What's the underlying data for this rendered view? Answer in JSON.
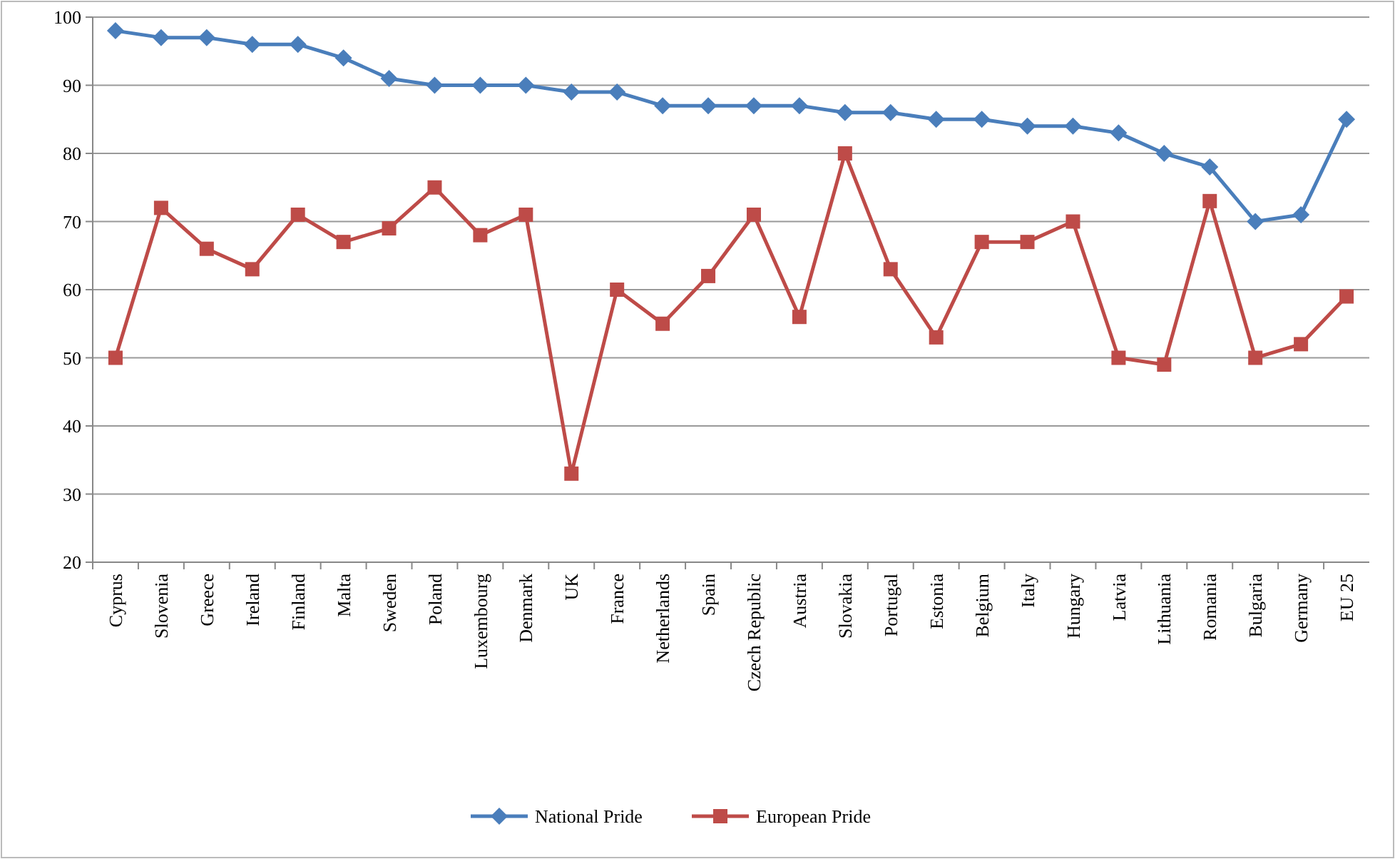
{
  "chart_data": {
    "type": "line",
    "categories": [
      "Cyprus",
      "Slovenia",
      "Greece",
      "Ireland",
      "Finland",
      "Malta",
      "Sweden",
      "Poland",
      "Luxembourg",
      "Denmark",
      "UK",
      "France",
      "Netherlands",
      "Spain",
      "Czech Republic",
      "Austria",
      "Slovakia",
      "Portugal",
      "Estonia",
      "Belgium",
      "Italy",
      "Hungary",
      "Latvia",
      "Lithuania",
      "Romania",
      "Bulgaria",
      "Germany",
      "EU 25"
    ],
    "series": [
      {
        "name": "National Pride",
        "color": "#4a7ebb",
        "marker": "diamond",
        "values": [
          98,
          97,
          97,
          96,
          96,
          94,
          91,
          90,
          90,
          90,
          89,
          89,
          87,
          87,
          87,
          87,
          86,
          86,
          85,
          85,
          84,
          84,
          83,
          80,
          78,
          70,
          71,
          85
        ]
      },
      {
        "name": "European Pride",
        "color": "#be4b48",
        "marker": "square",
        "values": [
          50,
          72,
          66,
          63,
          71,
          67,
          69,
          75,
          68,
          71,
          33,
          60,
          55,
          62,
          71,
          56,
          80,
          63,
          53,
          67,
          67,
          70,
          50,
          49,
          73,
          50,
          52,
          59
        ]
      }
    ],
    "ylim": [
      20,
      100
    ],
    "yticks": [
      20,
      30,
      40,
      50,
      60,
      70,
      80,
      90,
      100
    ],
    "grid": "y",
    "legend": "bottom",
    "line_style": "solid"
  }
}
